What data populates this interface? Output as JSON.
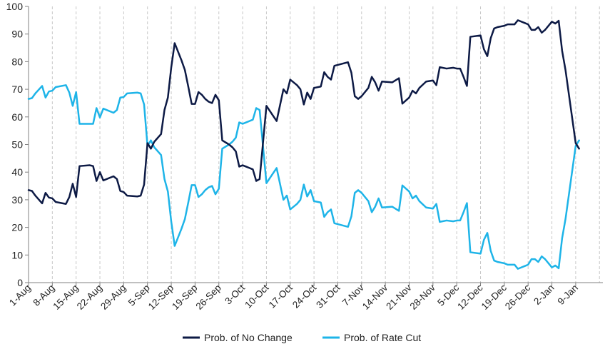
{
  "chart_data": {
    "type": "line",
    "title": "",
    "xlabel": "",
    "ylabel": "",
    "ylim": [
      0,
      100
    ],
    "yticks": [
      0,
      10,
      20,
      30,
      40,
      50,
      60,
      70,
      80,
      90,
      100
    ],
    "x_tick_labels": [
      "1-Aug",
      "8-Aug",
      "15-Aug",
      "22-Aug",
      "29-Aug",
      "5-Sep",
      "12-Sep",
      "19-Sep",
      "26-Sep",
      "3-Oct",
      "10-Oct",
      "17-Oct",
      "24-Oct",
      "31-Oct",
      "7-Nov",
      "14-Nov",
      "21-Nov",
      "28-Nov",
      "5-Dec",
      "12-Dec",
      "19-Dec",
      "26-Dec",
      "2-Jan",
      "9-Jan"
    ],
    "x_range_days": [
      0,
      169
    ],
    "vertical_grid": true,
    "horizontal_grid": false,
    "legend_position": "bottom",
    "series": [
      {
        "name": "Prob. of No Change",
        "color": "#0d1a45",
        "points": [
          [
            0,
            33.5
          ],
          [
            1,
            33.2
          ],
          [
            2,
            31.5
          ],
          [
            4,
            28.7
          ],
          [
            5,
            32.5
          ],
          [
            6,
            30.8
          ],
          [
            7,
            30.5
          ],
          [
            8,
            29.2
          ],
          [
            11,
            28.5
          ],
          [
            12,
            31
          ],
          [
            13,
            35.8
          ],
          [
            14,
            31
          ],
          [
            15,
            42.2
          ],
          [
            18,
            42.5
          ],
          [
            19,
            42.2
          ],
          [
            20,
            36.8
          ],
          [
            21,
            40
          ],
          [
            22,
            37
          ],
          [
            25,
            38.5
          ],
          [
            26,
            37.5
          ],
          [
            27,
            33.2
          ],
          [
            28,
            32.8
          ],
          [
            29,
            31.5
          ],
          [
            32,
            31.2
          ],
          [
            33,
            31.5
          ],
          [
            34,
            35.5
          ],
          [
            35,
            50.5
          ],
          [
            36,
            48.5
          ],
          [
            37,
            51
          ],
          [
            39,
            53.8
          ],
          [
            40,
            62.5
          ],
          [
            41,
            67
          ],
          [
            42,
            78
          ],
          [
            43,
            86.7
          ],
          [
            45,
            80.5
          ],
          [
            46,
            77
          ],
          [
            47,
            71
          ],
          [
            48,
            64.7
          ],
          [
            49,
            64.7
          ],
          [
            50,
            69
          ],
          [
            51,
            68
          ],
          [
            52,
            66.5
          ],
          [
            53,
            65.5
          ],
          [
            54,
            65
          ],
          [
            55,
            68
          ],
          [
            56,
            66
          ],
          [
            57,
            51.5
          ],
          [
            59,
            50
          ],
          [
            60,
            49
          ],
          [
            61,
            47.5
          ],
          [
            62,
            42
          ],
          [
            63,
            42.5
          ],
          [
            64,
            42
          ],
          [
            65,
            41.5
          ],
          [
            66,
            41
          ],
          [
            67,
            36.8
          ],
          [
            68,
            37.5
          ],
          [
            70,
            64
          ],
          [
            73,
            58.5
          ],
          [
            75,
            70
          ],
          [
            76,
            68.5
          ],
          [
            77,
            73.5
          ],
          [
            79,
            71.5
          ],
          [
            80,
            70
          ],
          [
            81,
            64.5
          ],
          [
            82,
            68.8
          ],
          [
            83,
            66.5
          ],
          [
            84,
            70.5
          ],
          [
            86,
            71
          ],
          [
            87,
            76.2
          ],
          [
            88,
            74.5
          ],
          [
            89,
            73.5
          ],
          [
            90,
            78.5
          ],
          [
            94,
            79.8
          ],
          [
            95,
            76
          ],
          [
            96,
            67.5
          ],
          [
            97,
            66.5
          ],
          [
            98,
            67.5
          ],
          [
            100,
            70.5
          ],
          [
            101,
            74.5
          ],
          [
            102,
            72.5
          ],
          [
            103,
            69.5
          ],
          [
            104,
            72.8
          ],
          [
            107,
            72.5
          ],
          [
            109,
            74
          ],
          [
            110,
            64.8
          ],
          [
            112,
            67
          ],
          [
            113,
            69.5
          ],
          [
            114,
            68.5
          ],
          [
            115,
            70.5
          ],
          [
            117,
            72.8
          ],
          [
            119,
            73.2
          ],
          [
            120,
            71.5
          ],
          [
            121,
            78
          ],
          [
            123,
            77.5
          ],
          [
            125,
            77.8
          ],
          [
            126,
            77.5
          ],
          [
            127,
            77.5
          ],
          [
            128,
            74.5
          ],
          [
            129,
            71.2
          ],
          [
            130,
            89
          ],
          [
            133,
            89.5
          ],
          [
            134,
            84.5
          ],
          [
            135,
            82
          ],
          [
            136,
            88.5
          ],
          [
            137,
            92
          ],
          [
            138,
            92.5
          ],
          [
            140,
            93
          ],
          [
            141,
            93.5
          ],
          [
            143,
            93.5
          ],
          [
            144,
            95
          ],
          [
            146,
            94
          ],
          [
            147,
            93.5
          ],
          [
            148,
            91.5
          ],
          [
            149,
            91.5
          ],
          [
            150,
            92.5
          ],
          [
            151,
            90.5
          ],
          [
            152,
            91.5
          ],
          [
            154,
            94.5
          ],
          [
            155,
            93.8
          ],
          [
            156,
            94.8
          ],
          [
            157,
            84
          ],
          [
            158,
            77
          ],
          [
            161,
            50.5
          ],
          [
            162,
            48.5
          ]
        ]
      },
      {
        "name": "Prob. of Rate Cut",
        "color": "#1eb4e8",
        "points": [
          [
            0,
            66.5
          ],
          [
            1,
            66.8
          ],
          [
            2,
            68.5
          ],
          [
            4,
            71.2
          ],
          [
            5,
            67
          ],
          [
            6,
            69.2
          ],
          [
            7,
            69.5
          ],
          [
            8,
            70.8
          ],
          [
            11,
            71.5
          ],
          [
            12,
            68.8
          ],
          [
            13,
            64
          ],
          [
            14,
            69
          ],
          [
            15,
            57.5
          ],
          [
            18,
            57.5
          ],
          [
            19,
            57.5
          ],
          [
            20,
            63.2
          ],
          [
            21,
            59.8
          ],
          [
            22,
            63
          ],
          [
            25,
            61.5
          ],
          [
            26,
            62.5
          ],
          [
            27,
            67
          ],
          [
            28,
            67.2
          ],
          [
            29,
            68.5
          ],
          [
            32,
            68.8
          ],
          [
            33,
            68.5
          ],
          [
            34,
            64.5
          ],
          [
            35,
            49.5
          ],
          [
            36,
            51.5
          ],
          [
            37,
            49
          ],
          [
            39,
            46.2
          ],
          [
            40,
            37.5
          ],
          [
            41,
            33
          ],
          [
            42,
            22
          ],
          [
            43,
            13.3
          ],
          [
            45,
            19.5
          ],
          [
            46,
            23
          ],
          [
            47,
            29
          ],
          [
            48,
            35.3
          ],
          [
            49,
            35.3
          ],
          [
            50,
            31
          ],
          [
            51,
            32
          ],
          [
            52,
            33.5
          ],
          [
            53,
            34.5
          ],
          [
            54,
            35
          ],
          [
            55,
            32
          ],
          [
            56,
            34
          ],
          [
            57,
            48.5
          ],
          [
            59,
            50
          ],
          [
            60,
            51
          ],
          [
            61,
            52.5
          ],
          [
            62,
            58
          ],
          [
            63,
            57.5
          ],
          [
            64,
            58
          ],
          [
            65,
            58.5
          ],
          [
            66,
            59
          ],
          [
            67,
            63.2
          ],
          [
            68,
            62.5
          ],
          [
            70,
            36
          ],
          [
            73,
            41.5
          ],
          [
            75,
            30
          ],
          [
            76,
            31.5
          ],
          [
            77,
            26.5
          ],
          [
            79,
            28.5
          ],
          [
            80,
            30
          ],
          [
            81,
            35.5
          ],
          [
            82,
            31.2
          ],
          [
            83,
            33.5
          ],
          [
            84,
            29.5
          ],
          [
            86,
            29
          ],
          [
            87,
            23.8
          ],
          [
            88,
            25.5
          ],
          [
            89,
            26.5
          ],
          [
            90,
            21.5
          ],
          [
            94,
            20.2
          ],
          [
            95,
            24
          ],
          [
            96,
            32.5
          ],
          [
            97,
            33.5
          ],
          [
            98,
            32.5
          ],
          [
            100,
            29.5
          ],
          [
            101,
            25.5
          ],
          [
            102,
            27.5
          ],
          [
            103,
            30.5
          ],
          [
            104,
            27.2
          ],
          [
            107,
            27.5
          ],
          [
            109,
            26
          ],
          [
            110,
            35.2
          ],
          [
            112,
            33
          ],
          [
            113,
            30.5
          ],
          [
            114,
            31.5
          ],
          [
            115,
            29.5
          ],
          [
            117,
            27.2
          ],
          [
            119,
            26.8
          ],
          [
            120,
            28.5
          ],
          [
            121,
            22
          ],
          [
            123,
            22.5
          ],
          [
            125,
            22.2
          ],
          [
            126,
            22.5
          ],
          [
            127,
            22.5
          ],
          [
            128,
            25.5
          ],
          [
            129,
            28.8
          ],
          [
            130,
            11
          ],
          [
            133,
            10.5
          ],
          [
            134,
            15.5
          ],
          [
            135,
            18
          ],
          [
            136,
            11.5
          ],
          [
            137,
            8
          ],
          [
            138,
            7.5
          ],
          [
            140,
            7
          ],
          [
            141,
            6.5
          ],
          [
            143,
            6.5
          ],
          [
            144,
            5
          ],
          [
            146,
            6
          ],
          [
            147,
            6.5
          ],
          [
            148,
            8.5
          ],
          [
            149,
            8.5
          ],
          [
            150,
            7.5
          ],
          [
            151,
            9.5
          ],
          [
            152,
            8.5
          ],
          [
            154,
            5.5
          ],
          [
            155,
            6.2
          ],
          [
            156,
            5.2
          ],
          [
            157,
            16
          ],
          [
            158,
            23
          ],
          [
            161,
            49.5
          ],
          [
            162,
            51.5
          ]
        ]
      }
    ]
  }
}
